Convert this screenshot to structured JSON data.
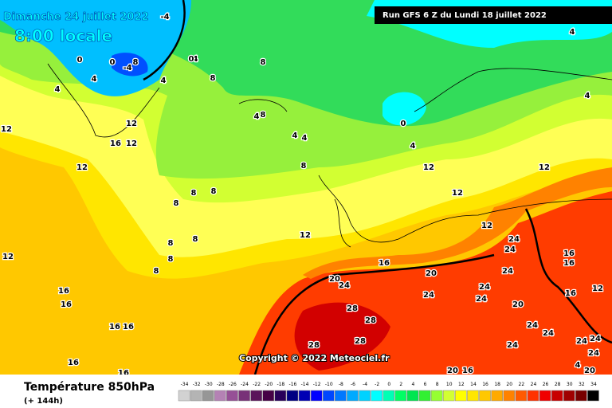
{
  "header": {
    "date": "Dimanche 24 juillet 2022",
    "time": "8:00 locale",
    "run": "Run GFS 6 Z du Lundi 18 juillet 2022"
  },
  "copyright": "Copyright © 2022 Meteociel.fr",
  "footer": {
    "field": "Température 850hPa",
    "lead": "(+ 144h)"
  },
  "legend": {
    "values": [
      -34,
      -32,
      -30,
      -28,
      -26,
      -24,
      -22,
      -20,
      -18,
      -16,
      -14,
      -12,
      -10,
      -8,
      -6,
      -4,
      -2,
      0,
      2,
      4,
      6,
      8,
      10,
      12,
      14,
      16,
      18,
      20,
      22,
      24,
      26,
      28,
      30,
      32,
      34
    ],
    "colors": [
      "#d2d2d2",
      "#b4b4b4",
      "#969696",
      "#b482b4",
      "#965096",
      "#783278",
      "#5a145a",
      "#460046",
      "#28005a",
      "#000082",
      "#0000b4",
      "#0000ff",
      "#0046ff",
      "#0078ff",
      "#00aaff",
      "#00d2ff",
      "#00ffff",
      "#00ffb4",
      "#00ff64",
      "#00e650",
      "#32f032",
      "#96ff32",
      "#d2ff32",
      "#ffff00",
      "#ffe600",
      "#ffc800",
      "#ffaa00",
      "#ff8200",
      "#ff5a00",
      "#ff3200",
      "#f00000",
      "#c80000",
      "#a00000",
      "#780000",
      "#000000"
    ]
  },
  "contour_labels": [
    -4,
    0,
    -4,
    8,
    4,
    0,
    4,
    0,
    4,
    8,
    4,
    8,
    8,
    4,
    4,
    4,
    4,
    0,
    4,
    12,
    12,
    16,
    12,
    12,
    8,
    8,
    8,
    8,
    8,
    8,
    8,
    8,
    12,
    12,
    12,
    12,
    12,
    12,
    16,
    16,
    16,
    16,
    16,
    16,
    16,
    16,
    20,
    24,
    20,
    24,
    24,
    24,
    24,
    28,
    28,
    28,
    28,
    24,
    20,
    24,
    24,
    24,
    24,
    24,
    24,
    24,
    20,
    20,
    16,
    16,
    16,
    12,
    4,
    4
  ]
}
